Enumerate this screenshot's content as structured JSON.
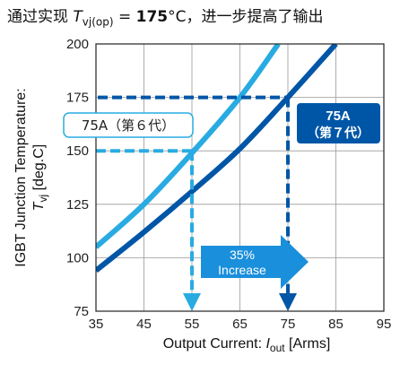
{
  "title": {
    "prefix": "通过实现 ",
    "symbol": "T",
    "subscript": "vj(op)",
    "equals": " = ",
    "value": "175",
    "unit": "°C",
    "suffix": "，进一步提高了输出"
  },
  "chart_data": {
    "type": "line",
    "xlabel": {
      "prefix": "Output Current: ",
      "symbol": "I",
      "subscript": "out",
      "suffix": " [Arms]"
    },
    "ylabel": {
      "line1": "IGBT Junction Temperature:",
      "symbol": "T",
      "subscript": "vj",
      "suffix": " [deg.C]"
    },
    "xlim": [
      35,
      95
    ],
    "ylim": [
      75,
      200
    ],
    "x_ticks": [
      35,
      45,
      55,
      65,
      75,
      85,
      95
    ],
    "y_ticks": [
      75,
      100,
      125,
      150,
      175,
      200
    ],
    "grid": true,
    "series": [
      {
        "name": "75A（第６代）",
        "color": "#29abe2",
        "points": [
          [
            35,
            105
          ],
          [
            45,
            125
          ],
          [
            55,
            149
          ],
          [
            65,
            175
          ],
          [
            73,
            200
          ]
        ]
      },
      {
        "name": "75A（第７代）",
        "color": "#0056a6",
        "points": [
          [
            35,
            94
          ],
          [
            45,
            112
          ],
          [
            55,
            131
          ],
          [
            65,
            151
          ],
          [
            75,
            175
          ],
          [
            85,
            200
          ]
        ]
      }
    ],
    "reference_lines": [
      {
        "series": 0,
        "x": 55,
        "y": 150,
        "color": "#29abe2"
      },
      {
        "series": 1,
        "x": 75,
        "y": 175,
        "color": "#0056a6"
      }
    ],
    "annotations": {
      "gen6_label": "75A（第６代）",
      "gen7_label_line1": "75A",
      "gen7_label_line2": "（第７代）",
      "increase_line1": "35%",
      "increase_line2": "Increase"
    }
  }
}
